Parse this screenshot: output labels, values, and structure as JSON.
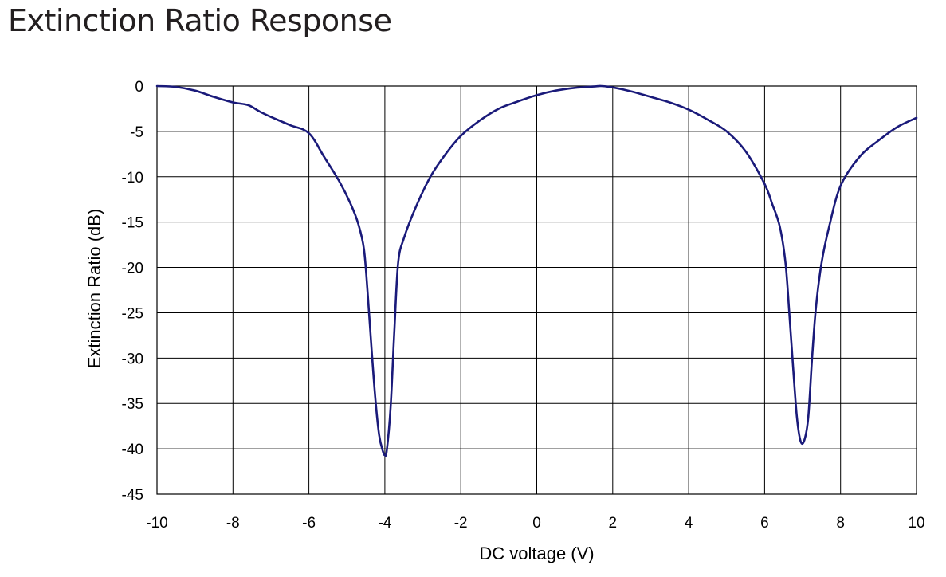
{
  "page": {
    "title": "Extinction Ratio Response"
  },
  "chart_data": {
    "type": "line",
    "xlabel": "DC voltage (V)",
    "ylabel": "Extinction Ratio (dB)",
    "xlim": [
      -10,
      10
    ],
    "ylim": [
      -45,
      0
    ],
    "xticks": [
      -10,
      -8,
      -6,
      -4,
      -2,
      0,
      2,
      4,
      6,
      8,
      10
    ],
    "yticks": [
      0,
      -5,
      -10,
      -15,
      -20,
      -25,
      -30,
      -35,
      -40,
      -45
    ],
    "grid": true,
    "line_color": "#1a1a7a",
    "series": [
      {
        "x": [
          -10,
          -9.5,
          -9,
          -8.5,
          -8,
          -7.6,
          -7.3,
          -7,
          -6.5,
          -6,
          -5.6,
          -5.2,
          -4.9,
          -4.7,
          -4.55,
          -4.45,
          -4.35,
          -4.25,
          -4.15,
          -4.05,
          -4,
          -3.95,
          -3.85,
          -3.75,
          -3.65,
          -3.5,
          -3.2,
          -2.8,
          -2.4,
          -2,
          -1.5,
          -1,
          -0.5,
          0,
          0.5,
          1,
          1.5,
          1.7,
          2,
          2.5,
          3,
          3.5,
          4,
          4.5,
          5,
          5.5,
          6,
          6.2,
          6.4,
          6.55,
          6.65,
          6.75,
          6.85,
          6.95,
          7.05,
          7.15,
          7.25,
          7.35,
          7.5,
          7.7,
          8,
          8.5,
          9,
          9.5,
          10
        ],
        "y": [
          0,
          -0.1,
          -0.5,
          -1.2,
          -1.8,
          -2.1,
          -2.8,
          -3.4,
          -4.3,
          -5.2,
          -7.8,
          -10.5,
          -13,
          -15.2,
          -18,
          -23,
          -29,
          -34.5,
          -38.5,
          -40.3,
          -40.7,
          -40.2,
          -35.5,
          -27,
          -19.5,
          -16.8,
          -13.5,
          -10,
          -7.5,
          -5.5,
          -3.8,
          -2.5,
          -1.7,
          -1,
          -0.5,
          -0.2,
          -0.05,
          0,
          -0.15,
          -0.6,
          -1.2,
          -1.8,
          -2.6,
          -3.7,
          -5,
          -7.2,
          -10.8,
          -13,
          -15.5,
          -19.5,
          -25,
          -31,
          -36.5,
          -39.2,
          -39,
          -36.5,
          -30,
          -24.5,
          -19.5,
          -15.5,
          -11,
          -7.8,
          -6,
          -4.5,
          -3.5
        ]
      }
    ]
  }
}
